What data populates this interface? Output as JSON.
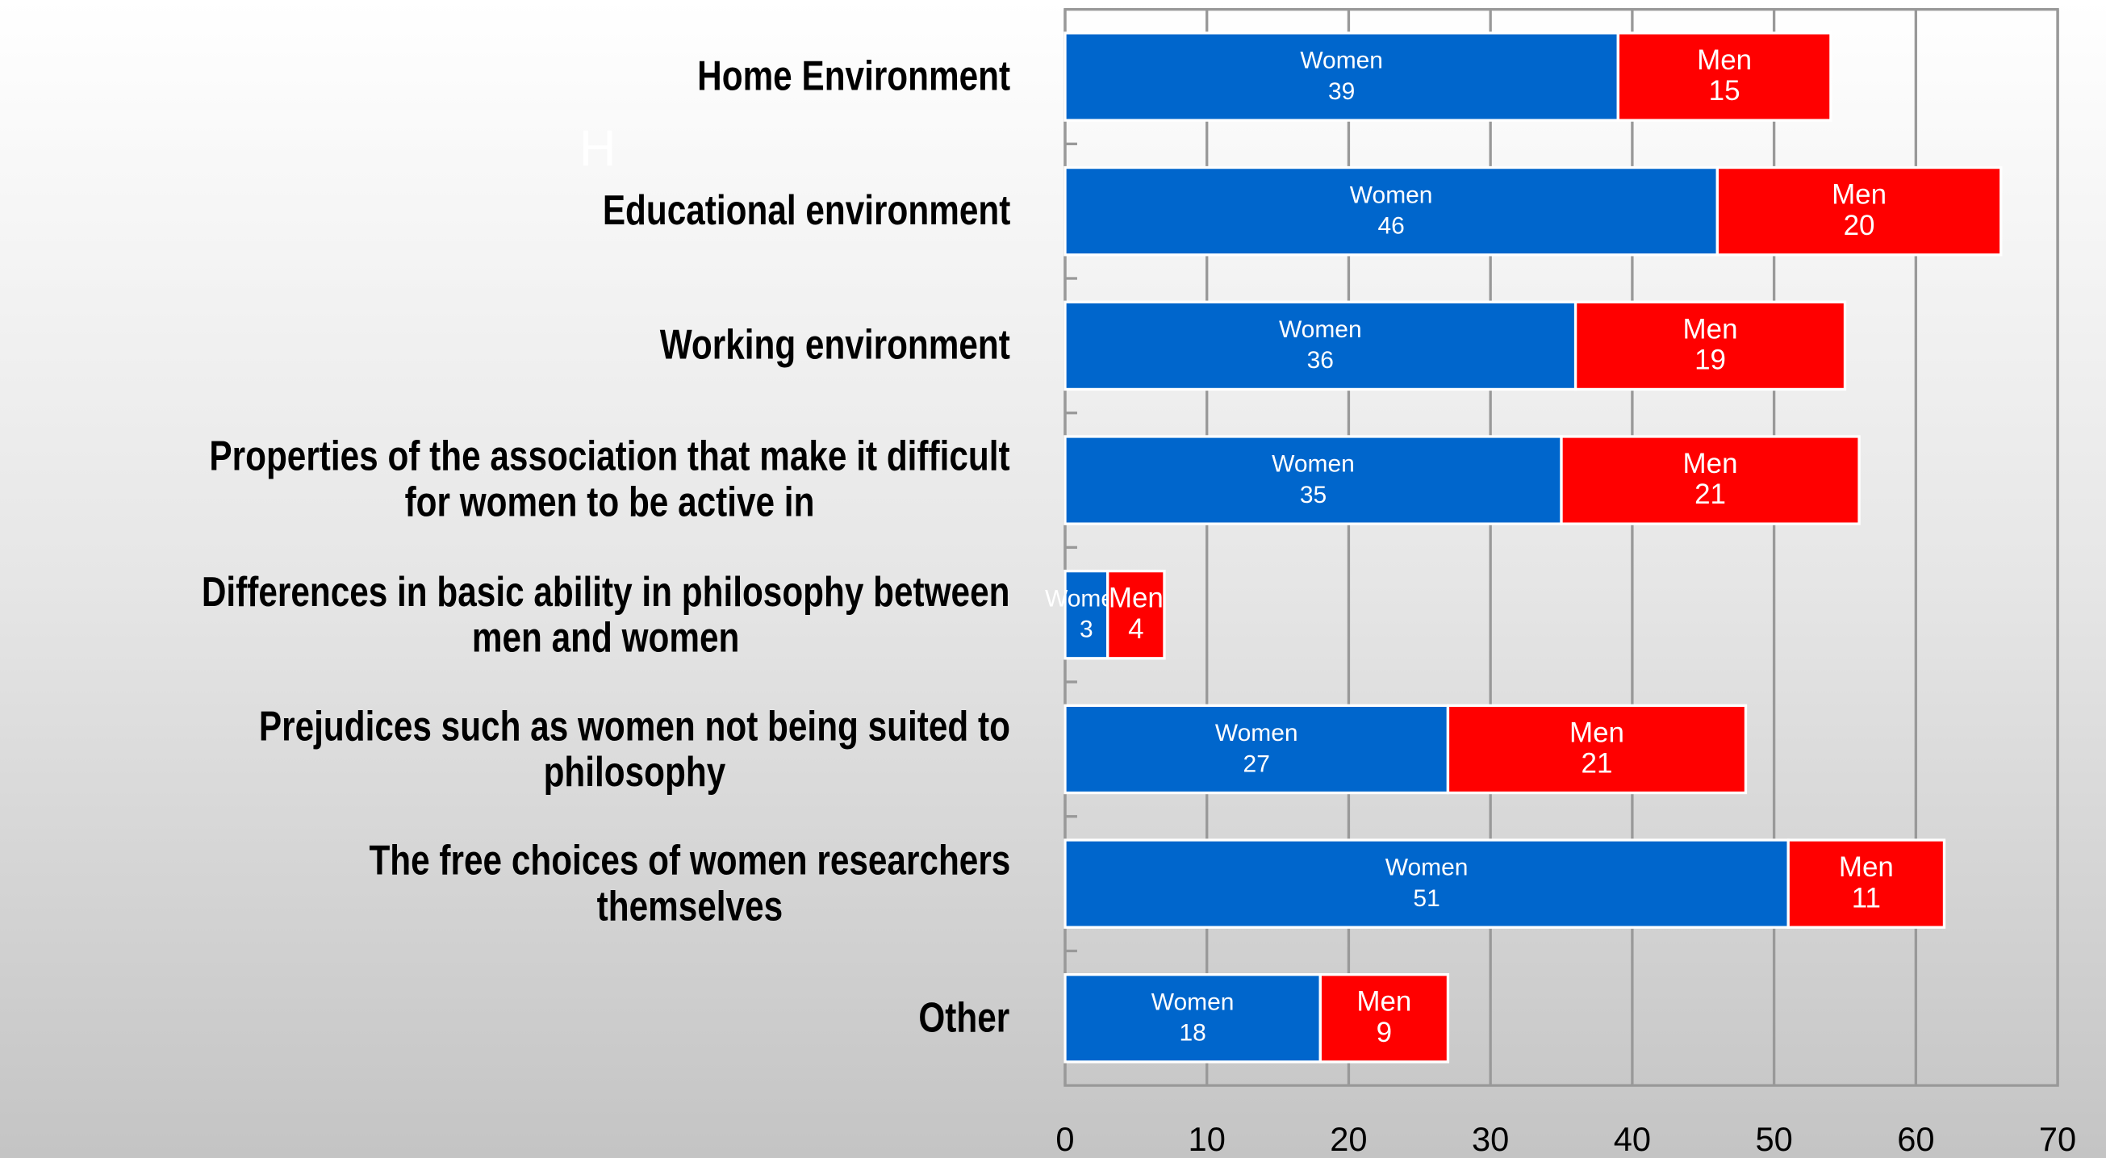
{
  "chart_data": {
    "type": "stacked-barh",
    "annotations": [
      "H"
    ],
    "categories": [
      "Home Environment",
      "Educational environment",
      "Working environment",
      "Properties of the association that make it difficult\nfor women to be active in",
      "Differences in basic ability in philosophy between\nmen and women",
      "Prejudices such as women not being suited to\nphilosophy",
      "The free choices of women researchers\nthemselves",
      "Other"
    ],
    "series": [
      {
        "name": "Women",
        "color": "#0066cc",
        "values": [
          39,
          46,
          36,
          35,
          3,
          27,
          51,
          18
        ]
      },
      {
        "name": "Men",
        "color": "#ff0000",
        "values": [
          15,
          20,
          19,
          21,
          4,
          21,
          11,
          9
        ]
      }
    ],
    "xlim": [
      0,
      70
    ],
    "xticks": [
      0,
      10,
      20,
      30,
      40,
      50,
      60,
      70
    ],
    "grid": true
  }
}
